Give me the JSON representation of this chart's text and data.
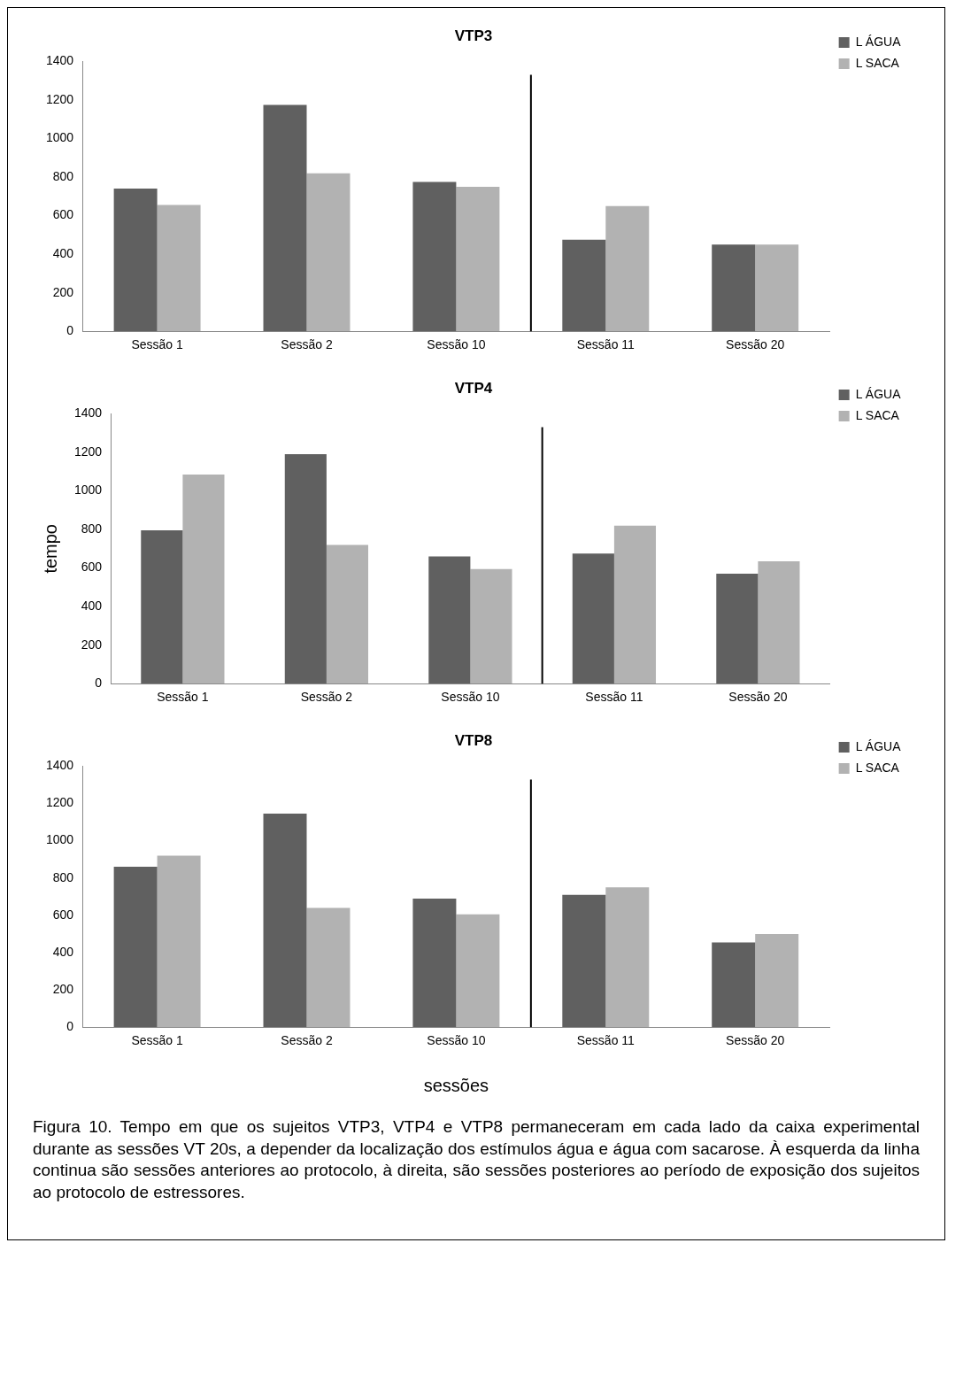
{
  "chart_data": [
    {
      "type": "bar",
      "title": "VTP3",
      "categories": [
        "Sessão 1",
        "Sessão 2",
        "Sessão 10",
        "Sessão 11",
        "Sessão 20"
      ],
      "series": [
        {
          "name": "L ÁGUA",
          "color": "#606060",
          "values": [
            740,
            1175,
            775,
            475,
            450
          ]
        },
        {
          "name": "L SACA",
          "color": "#b2b2b2",
          "values": [
            655,
            820,
            750,
            650,
            450
          ]
        }
      ],
      "ylim": [
        0,
        1400
      ],
      "yticks": [
        0,
        200,
        400,
        600,
        800,
        1000,
        1200,
        1400
      ],
      "grid": false,
      "legend": "top right"
    },
    {
      "type": "bar",
      "title": "VTP4",
      "ylabel": "tempo",
      "categories": [
        "Sessão 1",
        "Sessão 2",
        "Sessão 10",
        "Sessão 11",
        "Sessão 20"
      ],
      "series": [
        {
          "name": "L ÁGUA",
          "color": "#606060",
          "values": [
            795,
            1190,
            660,
            675,
            570
          ]
        },
        {
          "name": "L SACA",
          "color": "#b2b2b2",
          "values": [
            1085,
            720,
            595,
            820,
            635
          ]
        }
      ],
      "ylim": [
        0,
        1400
      ],
      "yticks": [
        0,
        200,
        400,
        600,
        800,
        1000,
        1200,
        1400
      ],
      "grid": false,
      "legend": "top right"
    },
    {
      "type": "bar",
      "title": "VTP8",
      "xlabel": "sessões",
      "categories": [
        "Sessão 1",
        "Sessão 2",
        "Sessão 10",
        "Sessão 11",
        "Sessão 20"
      ],
      "series": [
        {
          "name": "L ÁGUA",
          "color": "#606060",
          "values": [
            860,
            1145,
            690,
            710,
            455
          ]
        },
        {
          "name": "L SACA",
          "color": "#b2b2b2",
          "values": [
            920,
            640,
            605,
            750,
            500
          ]
        }
      ],
      "ylim": [
        0,
        1400
      ],
      "yticks": [
        0,
        200,
        400,
        600,
        800,
        1000,
        1200,
        1400
      ],
      "grid": false,
      "legend": "top right",
      "annotations": [
        "Figura 10. Tempo em que os sujeitos VTP3, VTP4 e VTP8 permaneceram em cada lado da caixa experimental durante as sessões VT 20s, a depender da localização dos estímulos água e água com sacarose. À esquerda da linha continua são sessões anteriores ao protocolo, à direita, são sessões posteriores ao período de exposição dos sujeitos ao protocolo de estressores."
      ]
    }
  ]
}
